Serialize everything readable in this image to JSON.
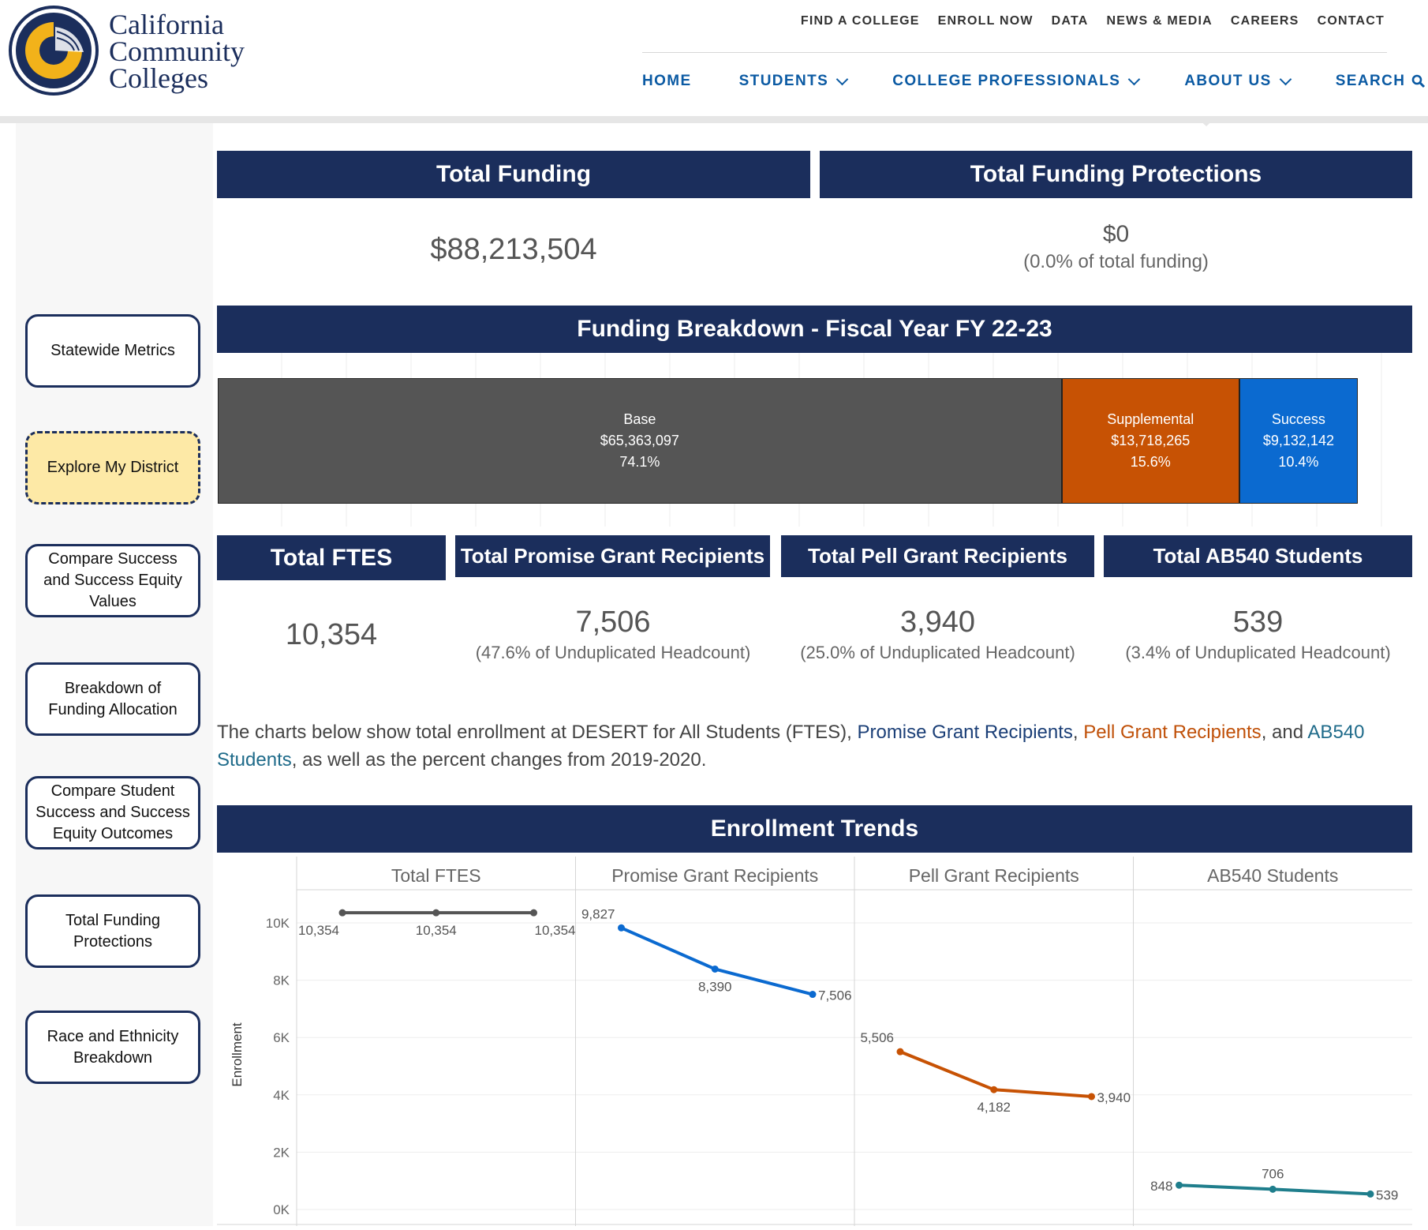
{
  "brand": {
    "name_lines": [
      "California",
      "Community",
      "Colleges"
    ]
  },
  "utility_nav": [
    "FIND A COLLEGE",
    "ENROLL NOW",
    "DATA",
    "NEWS & MEDIA",
    "CAREERS",
    "CONTACT"
  ],
  "main_nav": {
    "home": "HOME",
    "students": "STUDENTS",
    "college_professionals": "COLLEGE PROFESSIONALS",
    "about_us": "ABOUT US",
    "search": "SEARCH"
  },
  "sidebar": [
    "Statewide Metrics",
    "Explore My District",
    "Compare Success and Success Equity Values",
    "Breakdown of Funding Allocation",
    "Compare Student Success and Success Equity Outcomes",
    "Total Funding Protections",
    "Race and Ethnicity Breakdown"
  ],
  "total_funding": {
    "title": "Total Funding",
    "value": "$88,213,504"
  },
  "funding_protections": {
    "title": "Total Funding Protections",
    "value": "$0",
    "sub": "(0.0% of total funding)"
  },
  "breakdown": {
    "title": "Funding Breakdown - Fiscal Year FY 22-23",
    "segments": [
      {
        "name": "Base",
        "amount": "$65,363,097",
        "pct_label": "74.1%",
        "share": 74.1,
        "color": "#555555"
      },
      {
        "name": "Supplemental",
        "amount": "$13,718,265",
        "pct_label": "15.6%",
        "share": 15.6,
        "color": "#c75204"
      },
      {
        "name": "Success",
        "amount": "$9,132,142",
        "pct_label": "10.4%",
        "share": 10.4,
        "color": "#0b6ad0"
      }
    ]
  },
  "kpis": {
    "ftes": {
      "title": "Total FTES",
      "value": "10,354"
    },
    "promise": {
      "title": "Total Promise Grant Recipients",
      "value": "7,506",
      "sub": "(47.6% of Unduplicated Headcount)"
    },
    "pell": {
      "title": "Total Pell Grant Recipients",
      "value": "3,940",
      "sub": "(25.0% of Unduplicated Headcount)"
    },
    "ab540": {
      "title": "Total AB540 Students",
      "value": "539",
      "sub": "(3.4% of Unduplicated Headcount)"
    }
  },
  "description": {
    "t1": "The charts below show total enrollment at DESERT for ",
    "t2": "All Students (FTES)",
    "t3": ", ",
    "t4": "Promise Grant Recipients",
    "t5": ", ",
    "t6": "Pell Grant Recipients",
    "t7": ", and ",
    "t8": "AB540 Students",
    "t9": ", as well as the percent changes from 2019-2020."
  },
  "enrollment": {
    "title": "Enrollment Trends",
    "ylabel": "Enrollment"
  },
  "chart_data": {
    "type": "line",
    "ylabel": "Enrollment",
    "ylim": [
      0,
      10500
    ],
    "yticks": [
      0,
      2000,
      4000,
      6000,
      8000,
      10000
    ],
    "ytick_labels": [
      "0K",
      "2K",
      "4K",
      "6K",
      "8K",
      "10K"
    ],
    "panels": [
      {
        "name": "Total FTES",
        "color": "#555555",
        "values": [
          10354,
          10354,
          10354
        ],
        "labels": [
          "10,354",
          "10,354",
          "10,354"
        ]
      },
      {
        "name": "Promise Grant Recipients",
        "color": "#0b6ad0",
        "values": [
          9827,
          8390,
          7506
        ],
        "labels": [
          "9,827",
          "8,390",
          "7,506"
        ]
      },
      {
        "name": "Pell Grant Recipients",
        "color": "#c75204",
        "values": [
          5506,
          4182,
          3940
        ],
        "labels": [
          "5,506",
          "4,182",
          "3,940"
        ]
      },
      {
        "name": "AB540 Students",
        "color": "#1f7e8c",
        "values": [
          848,
          706,
          539
        ],
        "labels": [
          "848",
          "706",
          "539"
        ]
      }
    ]
  }
}
